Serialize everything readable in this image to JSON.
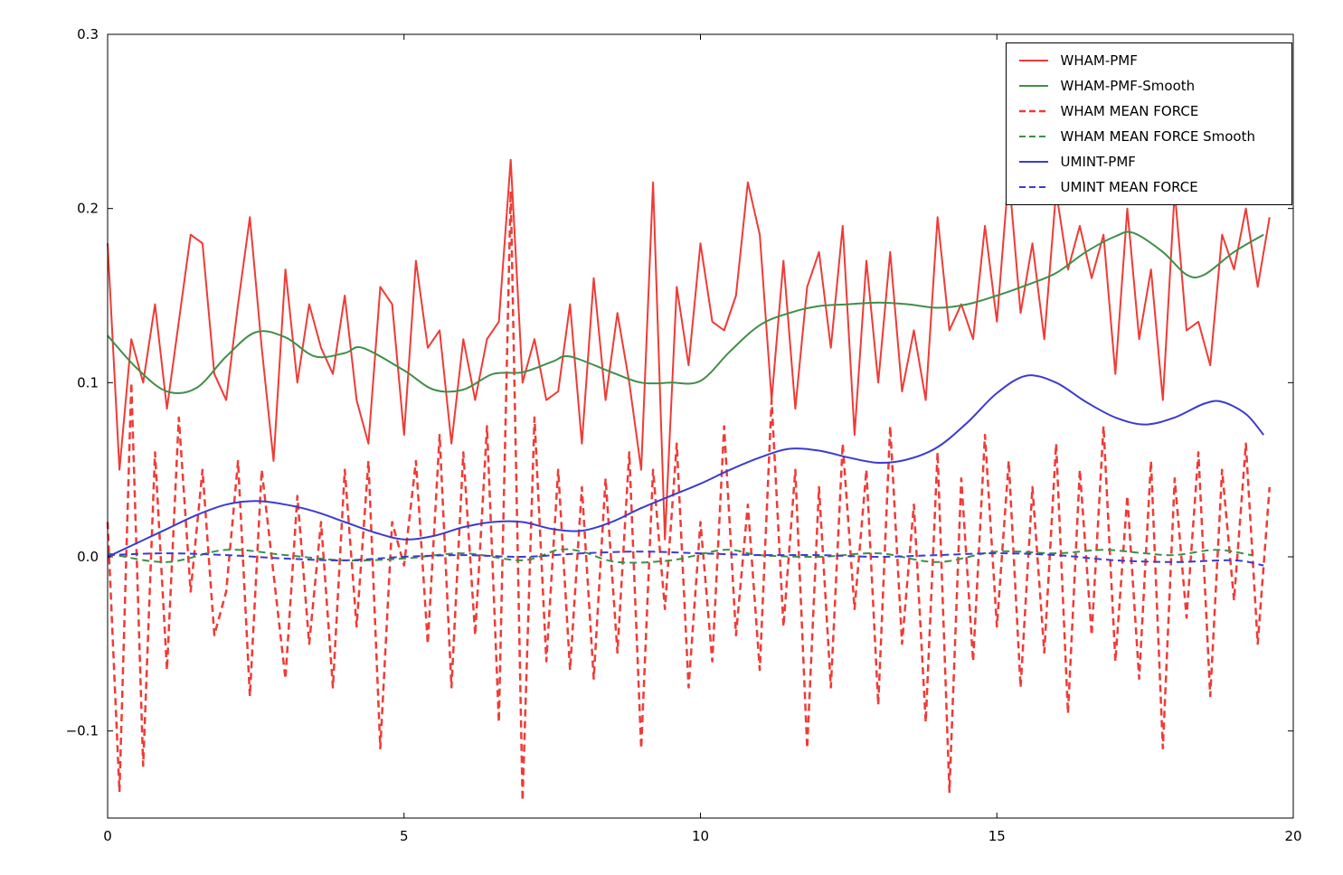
{
  "figure": {
    "background": "#ffffff",
    "frame_color": "#000000"
  },
  "chart_data": {
    "type": "line",
    "title": "",
    "xlabel": "",
    "ylabel": "",
    "xlim": [
      0,
      20
    ],
    "ylim": [
      -0.15,
      0.3
    ],
    "grid": false,
    "legend_position": "upper right",
    "x_ticks": {
      "values": [
        0,
        5,
        10,
        15,
        20
      ],
      "labels": [
        "0",
        "5",
        "10",
        "15",
        "20"
      ]
    },
    "y_ticks": {
      "values": [
        -0.1,
        0.0,
        0.1,
        0.2,
        0.3
      ],
      "labels": [
        "−0.1",
        "0.0",
        "0.1",
        "0.2",
        "0.3"
      ]
    },
    "series": [
      {
        "name": "WHAM-PMF",
        "color": "#ef3b36",
        "line_style": "solid",
        "line_width": 2,
        "smooth": false,
        "x0": 0,
        "dx": 0.2,
        "values": [
          0.18,
          0.05,
          0.125,
          0.1,
          0.145,
          0.085,
          0.135,
          0.185,
          0.18,
          0.105,
          0.09,
          0.145,
          0.195,
          0.12,
          0.055,
          0.165,
          0.1,
          0.145,
          0.12,
          0.105,
          0.15,
          0.09,
          0.065,
          0.155,
          0.145,
          0.07,
          0.17,
          0.12,
          0.13,
          0.065,
          0.125,
          0.09,
          0.125,
          0.135,
          0.228,
          0.1,
          0.125,
          0.09,
          0.095,
          0.145,
          0.065,
          0.16,
          0.09,
          0.14,
          0.1,
          0.05,
          0.215,
          0.01,
          0.155,
          0.11,
          0.18,
          0.135,
          0.13,
          0.15,
          0.215,
          0.185,
          0.09,
          0.17,
          0.085,
          0.155,
          0.175,
          0.12,
          0.19,
          0.07,
          0.17,
          0.1,
          0.175,
          0.095,
          0.13,
          0.09,
          0.195,
          0.13,
          0.145,
          0.125,
          0.19,
          0.135,
          0.22,
          0.14,
          0.18,
          0.125,
          0.21,
          0.165,
          0.19,
          0.16,
          0.185,
          0.105,
          0.2,
          0.125,
          0.165,
          0.09,
          0.21,
          0.13,
          0.135,
          0.11,
          0.185,
          0.165,
          0.2,
          0.155,
          0.195
        ]
      },
      {
        "name": "WHAM-PMF-Smooth",
        "color": "#3f8f46",
        "line_style": "solid",
        "line_width": 2,
        "smooth": true,
        "points": [
          [
            0,
            0.127
          ],
          [
            0.5,
            0.108
          ],
          [
            1.0,
            0.095
          ],
          [
            1.5,
            0.097
          ],
          [
            2.0,
            0.115
          ],
          [
            2.5,
            0.129
          ],
          [
            3.0,
            0.126
          ],
          [
            3.5,
            0.115
          ],
          [
            4.0,
            0.117
          ],
          [
            4.3,
            0.12
          ],
          [
            5.0,
            0.107
          ],
          [
            5.5,
            0.096
          ],
          [
            6.0,
            0.096
          ],
          [
            6.5,
            0.105
          ],
          [
            7.0,
            0.106
          ],
          [
            7.5,
            0.112
          ],
          [
            7.8,
            0.115
          ],
          [
            8.5,
            0.106
          ],
          [
            9.0,
            0.1
          ],
          [
            9.5,
            0.1
          ],
          [
            10.0,
            0.101
          ],
          [
            10.5,
            0.118
          ],
          [
            11.0,
            0.133
          ],
          [
            11.5,
            0.14
          ],
          [
            12.0,
            0.144
          ],
          [
            12.5,
            0.145
          ],
          [
            13.0,
            0.146
          ],
          [
            13.5,
            0.145
          ],
          [
            14.0,
            0.143
          ],
          [
            14.5,
            0.145
          ],
          [
            15.0,
            0.15
          ],
          [
            15.5,
            0.156
          ],
          [
            16.0,
            0.163
          ],
          [
            16.5,
            0.175
          ],
          [
            17.0,
            0.184
          ],
          [
            17.3,
            0.186
          ],
          [
            17.8,
            0.175
          ],
          [
            18.2,
            0.162
          ],
          [
            18.5,
            0.162
          ],
          [
            19.0,
            0.175
          ],
          [
            19.5,
            0.185
          ]
        ]
      },
      {
        "name": "WHAM MEAN FORCE",
        "color": "#ef3b36",
        "line_style": "dashed",
        "line_width": 2.5,
        "smooth": false,
        "x0": 0,
        "dx": 0.2,
        "values": [
          0.02,
          -0.135,
          0.1,
          -0.12,
          0.06,
          -0.065,
          0.08,
          -0.02,
          0.05,
          -0.045,
          -0.02,
          0.055,
          -0.08,
          0.05,
          -0.01,
          -0.07,
          0.035,
          -0.05,
          0.02,
          -0.075,
          0.05,
          -0.04,
          0.055,
          -0.11,
          0.02,
          -0.005,
          0.055,
          -0.05,
          0.07,
          -0.075,
          0.06,
          -0.045,
          0.075,
          -0.095,
          0.21,
          -0.14,
          0.08,
          -0.06,
          0.05,
          -0.065,
          0.04,
          -0.07,
          0.045,
          -0.055,
          0.06,
          -0.11,
          0.05,
          -0.03,
          0.065,
          -0.075,
          0.02,
          -0.06,
          0.075,
          -0.045,
          0.03,
          -0.065,
          0.09,
          -0.04,
          0.05,
          -0.11,
          0.04,
          -0.075,
          0.065,
          -0.03,
          0.05,
          -0.085,
          0.075,
          -0.05,
          0.03,
          -0.095,
          0.06,
          -0.135,
          0.045,
          -0.06,
          0.07,
          -0.04,
          0.055,
          -0.075,
          0.04,
          -0.055,
          0.065,
          -0.09,
          0.05,
          -0.045,
          0.075,
          -0.06,
          0.035,
          -0.07,
          0.055,
          -0.11,
          0.045,
          -0.035,
          0.06,
          -0.08,
          0.05,
          -0.025,
          0.065,
          -0.05,
          0.04
        ]
      },
      {
        "name": "WHAM MEAN FORCE Smooth",
        "color": "#3f8f46",
        "line_style": "dashed",
        "line_width": 2,
        "smooth": true,
        "points": [
          [
            0,
            0.002
          ],
          [
            1,
            -0.003
          ],
          [
            2,
            0.004
          ],
          [
            3,
            0.001
          ],
          [
            4,
            -0.002
          ],
          [
            5,
            -0.001
          ],
          [
            6,
            0.002
          ],
          [
            7,
            -0.002
          ],
          [
            7.6,
            0.004
          ],
          [
            8,
            0.003
          ],
          [
            8.6,
            -0.003
          ],
          [
            9.5,
            -0.002
          ],
          [
            10.4,
            0.004
          ],
          [
            11,
            0.001
          ],
          [
            12,
            0.0
          ],
          [
            13,
            0.002
          ],
          [
            14,
            -0.003
          ],
          [
            15,
            0.003
          ],
          [
            16,
            0.002
          ],
          [
            16.8,
            0.004
          ],
          [
            17.5,
            0.002
          ],
          [
            18,
            0.001
          ],
          [
            18.7,
            0.004
          ],
          [
            19.3,
            0.001
          ]
        ]
      },
      {
        "name": "UMINT-PMF",
        "color": "#3b3bd1",
        "line_style": "solid",
        "line_width": 2,
        "smooth": true,
        "points": [
          [
            0,
            0.0
          ],
          [
            0.5,
            0.008
          ],
          [
            1.0,
            0.016
          ],
          [
            1.5,
            0.024
          ],
          [
            2.0,
            0.03
          ],
          [
            2.5,
            0.032
          ],
          [
            3.0,
            0.03
          ],
          [
            3.5,
            0.026
          ],
          [
            4.0,
            0.02
          ],
          [
            4.5,
            0.014
          ],
          [
            5.0,
            0.01
          ],
          [
            5.5,
            0.012
          ],
          [
            6.0,
            0.017
          ],
          [
            6.5,
            0.02
          ],
          [
            7.0,
            0.02
          ],
          [
            7.5,
            0.016
          ],
          [
            8.0,
            0.015
          ],
          [
            8.5,
            0.02
          ],
          [
            9.0,
            0.028
          ],
          [
            9.5,
            0.035
          ],
          [
            10.0,
            0.042
          ],
          [
            10.5,
            0.05
          ],
          [
            11.0,
            0.057
          ],
          [
            11.5,
            0.062
          ],
          [
            12.0,
            0.061
          ],
          [
            12.5,
            0.057
          ],
          [
            13.0,
            0.054
          ],
          [
            13.5,
            0.056
          ],
          [
            14.0,
            0.063
          ],
          [
            14.5,
            0.077
          ],
          [
            15.0,
            0.094
          ],
          [
            15.5,
            0.104
          ],
          [
            16.0,
            0.1
          ],
          [
            16.5,
            0.089
          ],
          [
            17.0,
            0.08
          ],
          [
            17.5,
            0.076
          ],
          [
            18.0,
            0.08
          ],
          [
            18.5,
            0.088
          ],
          [
            18.8,
            0.089
          ],
          [
            19.2,
            0.082
          ],
          [
            19.5,
            0.07
          ]
        ]
      },
      {
        "name": "UMINT MEAN FORCE",
        "color": "#3b3bd1",
        "line_style": "dashed",
        "line_width": 2,
        "smooth": true,
        "points": [
          [
            0,
            0.001
          ],
          [
            1,
            0.002
          ],
          [
            2,
            0.001
          ],
          [
            3,
            -0.001
          ],
          [
            4,
            -0.002
          ],
          [
            5,
            0.0
          ],
          [
            6,
            0.001
          ],
          [
            7,
            0.0
          ],
          [
            8,
            0.002
          ],
          [
            9,
            0.003
          ],
          [
            10,
            0.002
          ],
          [
            11,
            0.001
          ],
          [
            12,
            0.001
          ],
          [
            13,
            0.0
          ],
          [
            14,
            0.001
          ],
          [
            15,
            0.002
          ],
          [
            16,
            0.001
          ],
          [
            17,
            -0.002
          ],
          [
            18,
            -0.003
          ],
          [
            19,
            -0.002
          ],
          [
            19.5,
            -0.005
          ]
        ]
      }
    ]
  }
}
